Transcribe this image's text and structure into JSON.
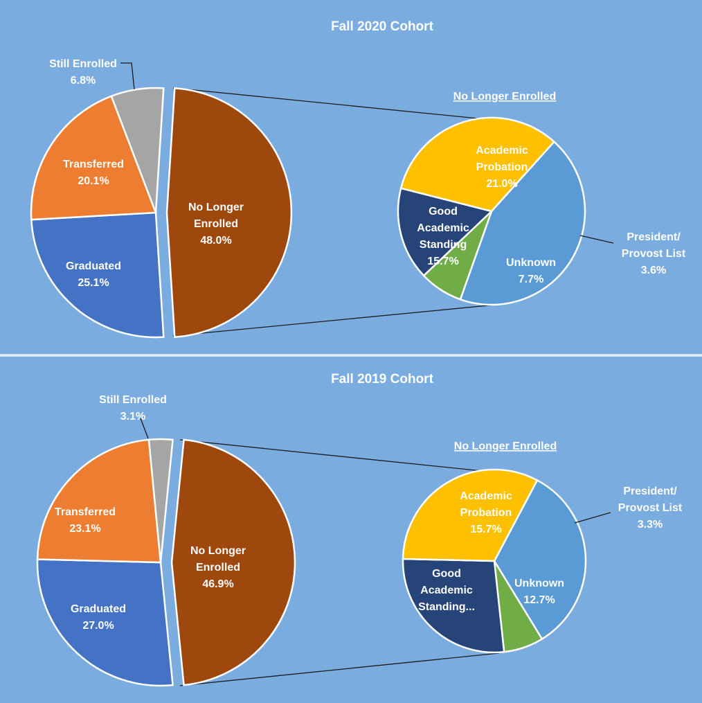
{
  "colors": {
    "background": "#7bace0",
    "still_enrolled": "#a5a5a5",
    "transferred": "#ed7d31",
    "graduated": "#4472c4",
    "no_longer_enrolled": "#9e480e",
    "academic_probation": "#5b9bd5",
    "president_provost": "#70ad47",
    "unknown": "#264478",
    "good_standing": "#ffc000"
  },
  "chart_data": [
    {
      "type": "pie",
      "title": "Fall 2020 Cohort",
      "main_pie": {
        "slices": [
          {
            "label": "No Longer Enrolled",
            "value": 48.0,
            "value_label": "48.0%"
          },
          {
            "label": "Graduated",
            "value": 25.1,
            "value_label": "25.1%"
          },
          {
            "label": "Transferred",
            "value": 20.1,
            "value_label": "20.1%"
          },
          {
            "label": "Still Enrolled",
            "value": 6.8,
            "value_label": "6.8%"
          }
        ]
      },
      "breakdown_pie": {
        "title": "No Longer Enrolled",
        "slices": [
          {
            "label": "Academic Probation",
            "value": 21.0,
            "value_label": "21.0%"
          },
          {
            "label": "President/ Provost List",
            "value": 3.6,
            "value_label": "3.6%"
          },
          {
            "label": "Unknown",
            "value": 7.7,
            "value_label": "7.7%"
          },
          {
            "label": "Good Academic Standing",
            "value": 15.7,
            "value_label": "15.7%"
          }
        ]
      }
    },
    {
      "type": "pie",
      "title": "Fall 2019 Cohort",
      "main_pie": {
        "slices": [
          {
            "label": "No Longer Enrolled",
            "value": 46.9,
            "value_label": "46.9%"
          },
          {
            "label": "Graduated",
            "value": 27.0,
            "value_label": "27.0%"
          },
          {
            "label": "Transferred",
            "value": 23.1,
            "value_label": "23.1%"
          },
          {
            "label": "Still Enrolled",
            "value": 3.1,
            "value_label": "3.1%"
          }
        ]
      },
      "breakdown_pie": {
        "title": "No Longer Enrolled",
        "slices": [
          {
            "label": "Academic Probation",
            "value": 15.7,
            "value_label": "15.7%"
          },
          {
            "label": "President/ Provost List",
            "value": 3.3,
            "value_label": "3.3%"
          },
          {
            "label": "Unknown",
            "value": 12.7,
            "value_label": "12.7%"
          },
          {
            "label": "Good Academic Standing...",
            "value": 15.2,
            "value_label": ""
          }
        ]
      }
    }
  ]
}
